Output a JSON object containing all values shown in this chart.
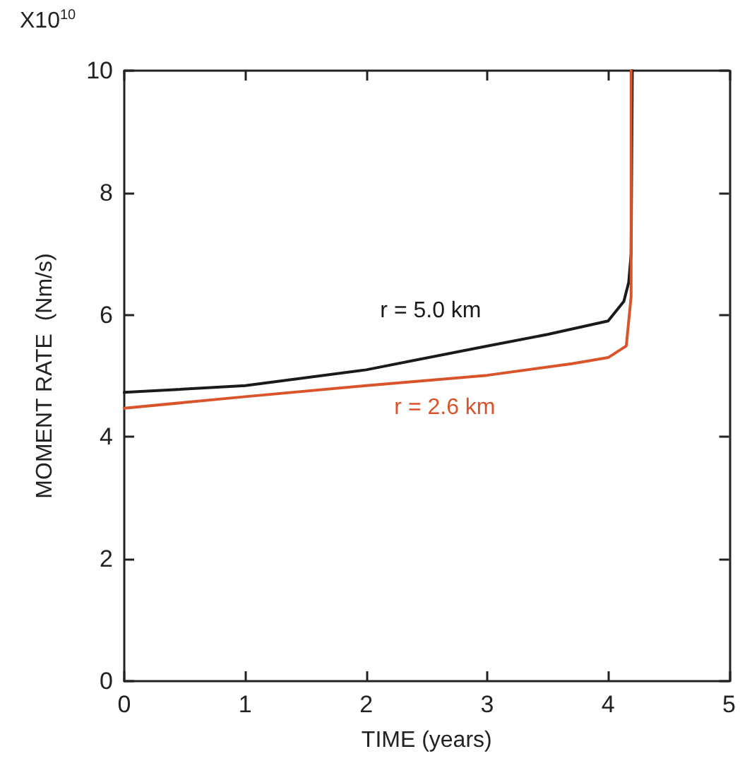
{
  "chart_data": {
    "type": "line",
    "xlabel": "TIME (years)",
    "ylabel": "MOMENT RATE  (Nm/s)",
    "annotations": [
      "X10$^{10}$"
    ],
    "series": [
      {
        "name": "r = 5.0 km",
        "color": "#1a1a1a",
        "x": [
          0,
          1,
          2,
          3,
          3.5,
          4,
          4.13,
          4.17,
          4.19,
          4.2
        ],
        "values": [
          4.73,
          4.84,
          5.1,
          5.49,
          5.68,
          5.9,
          6.22,
          6.53,
          7.0,
          10
        ]
      },
      {
        "name": "r = 2.6 km",
        "color": "#d9542b",
        "x": [
          0,
          1,
          2,
          3,
          3.7,
          4,
          4.15,
          4.19,
          4.19,
          4.19
        ],
        "values": [
          4.47,
          4.66,
          4.84,
          5.01,
          5.2,
          5.3,
          5.49,
          6.3,
          8,
          10
        ]
      }
    ],
    "xlim": [
      0,
      5
    ],
    "xticks": [
      0,
      1,
      2,
      3,
      4,
      5
    ],
    "ylim": [
      0,
      10
    ],
    "yticks": [
      0,
      2,
      4,
      6,
      8,
      10
    ],
    "grid": false,
    "legend": false,
    "marker": "none",
    "line_style": "solid"
  }
}
